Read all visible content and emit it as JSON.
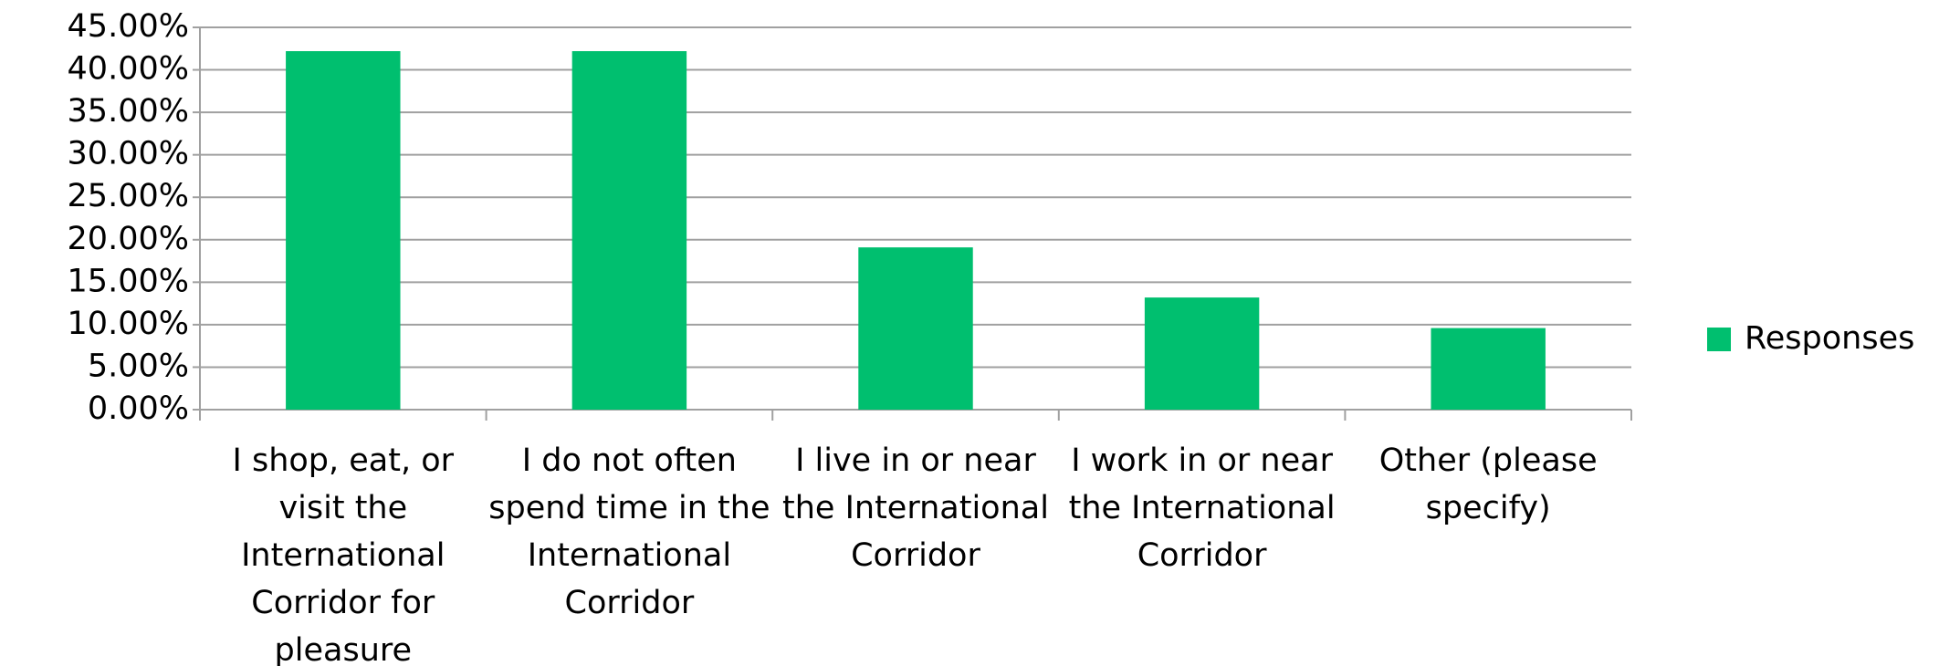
{
  "chart_data": {
    "type": "bar",
    "categories": [
      "I shop, eat, or visit the International Corridor for pleasure",
      "I do not often spend time in the International Corridor",
      "I live in or near the International Corridor",
      "I work in or near the International Corridor",
      "Other (please specify)"
    ],
    "series": [
      {
        "name": "Responses",
        "color": "#00bf6f",
        "values": [
          42.2,
          42.2,
          19.1,
          13.2,
          9.6
        ]
      }
    ],
    "ylim": [
      0,
      45
    ],
    "yticks": [
      {
        "value": 0,
        "label": "0.00%"
      },
      {
        "value": 5,
        "label": "5.00%"
      },
      {
        "value": 10,
        "label": "10.00%"
      },
      {
        "value": 15,
        "label": "15.00%"
      },
      {
        "value": 20,
        "label": "20.00%"
      },
      {
        "value": 25,
        "label": "25.00%"
      },
      {
        "value": 30,
        "label": "30.00%"
      },
      {
        "value": 35,
        "label": "35.00%"
      },
      {
        "value": 40,
        "label": "40.00%"
      },
      {
        "value": 45,
        "label": "45.00%"
      }
    ],
    "grid": true,
    "legend": "right"
  }
}
